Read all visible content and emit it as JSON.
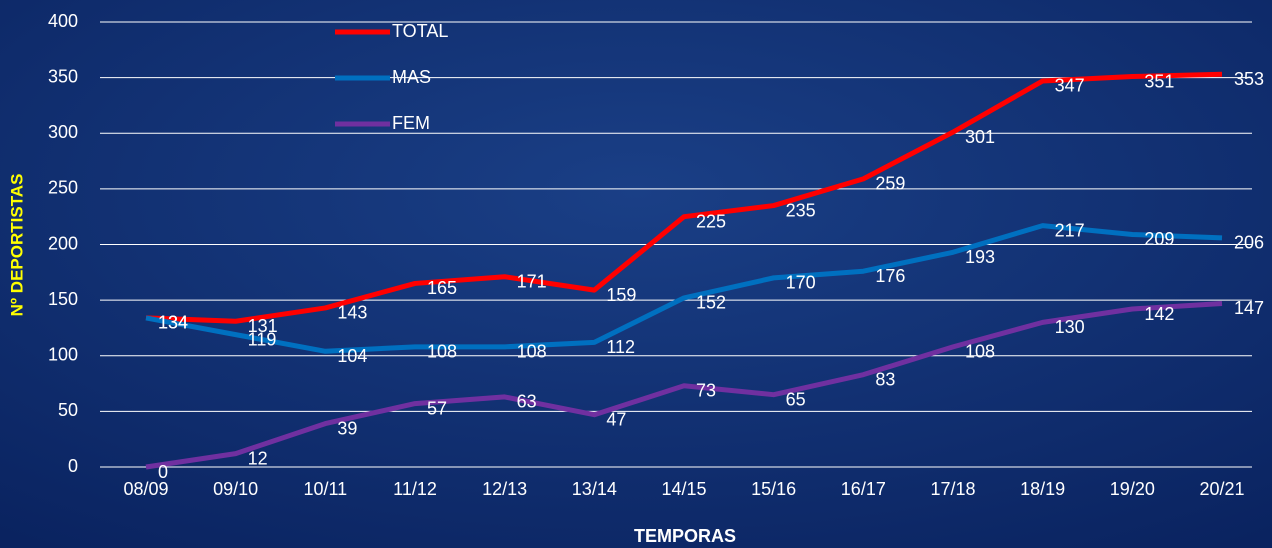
{
  "chart_data": {
    "type": "line",
    "x_label": "TEMPORAS",
    "y_label": "Nº DEPORTISTAS",
    "categories": [
      "08/09",
      "09/10",
      "10/11",
      "11/12",
      "12/13",
      "13/14",
      "14/15",
      "15/16",
      "16/17",
      "17/18",
      "18/19",
      "19/20",
      "20/21"
    ],
    "series": [
      {
        "name": "TOTAL",
        "color": "#ff0000",
        "values": [
          134,
          131,
          143,
          165,
          171,
          159,
          225,
          235,
          259,
          301,
          347,
          351,
          353
        ]
      },
      {
        "name": "MAS",
        "color": "#0070c0",
        "values": [
          134,
          119,
          104,
          108,
          108,
          112,
          152,
          170,
          176,
          193,
          217,
          209,
          206
        ]
      },
      {
        "name": "FEM",
        "color": "#7030a0",
        "values": [
          0,
          12,
          39,
          57,
          63,
          47,
          73,
          65,
          83,
          108,
          130,
          142,
          147
        ]
      }
    ],
    "ylim": [
      0,
      400
    ],
    "yticks": [
      0,
      50,
      100,
      150,
      200,
      250,
      300,
      350,
      400
    ],
    "grid": true
  }
}
